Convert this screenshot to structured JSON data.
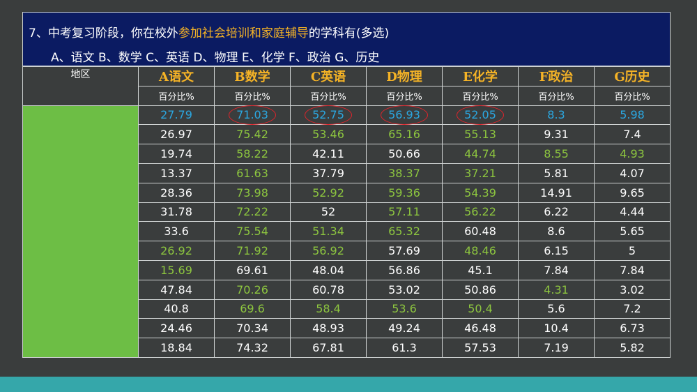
{
  "question": {
    "line1_pre": "7、中考复习阶段，你在校外",
    "line1_highlight": "参加社会培训和家庭辅导",
    "line1_post": "的学科有(多选)",
    "line2": "A、语文 B、数学 C、英语 D、物理 E、化学 F、政治 G、历史"
  },
  "table": {
    "region_header": "地区",
    "unit_label": "百分比%",
    "subjects": [
      "A语文",
      "B数学",
      "C英语",
      "D物理",
      "E化学",
      "F政治",
      "G历史"
    ],
    "rows": [
      [
        "27.79",
        "71.03",
        "52.75",
        "56.93",
        "52.05",
        "8.3",
        "5.98"
      ],
      [
        "26.97",
        "75.42",
        "53.46",
        "65.16",
        "55.13",
        "9.31",
        "7.4"
      ],
      [
        "19.74",
        "58.22",
        "42.11",
        "50.66",
        "44.74",
        "8.55",
        "4.93"
      ],
      [
        "13.37",
        "61.63",
        "37.79",
        "38.37",
        "37.21",
        "5.81",
        "4.07"
      ],
      [
        "28.36",
        "73.98",
        "52.92",
        "59.36",
        "54.39",
        "14.91",
        "9.65"
      ],
      [
        "31.78",
        "72.22",
        "52",
        "57.11",
        "56.22",
        "6.22",
        "4.44"
      ],
      [
        "33.6",
        "75.54",
        "51.34",
        "65.32",
        "60.48",
        "8.6",
        "5.65"
      ],
      [
        "26.92",
        "71.92",
        "56.92",
        "57.69",
        "48.46",
        "6.15",
        "5"
      ],
      [
        "15.69",
        "69.61",
        "48.04",
        "56.86",
        "45.1",
        "7.84",
        "7.84"
      ],
      [
        "47.84",
        "70.26",
        "60.78",
        "53.02",
        "50.86",
        "4.31",
        "3.02"
      ],
      [
        "40.8",
        "69.6",
        "58.4",
        "53.6",
        "50.4",
        "5.6",
        "7.2"
      ],
      [
        "24.46",
        "70.34",
        "48.93",
        "49.24",
        "46.48",
        "10.4",
        "6.73"
      ],
      [
        "18.84",
        "74.32",
        "67.81",
        "61.3",
        "57.53",
        "7.19",
        "5.82"
      ]
    ],
    "highlighted_cells": [
      [
        1,
        1
      ],
      [
        1,
        2
      ],
      [
        1,
        3
      ],
      [
        1,
        4
      ],
      [
        2,
        1
      ],
      [
        2,
        4
      ],
      [
        2,
        5
      ],
      [
        2,
        6
      ],
      [
        3,
        1
      ],
      [
        3,
        3
      ],
      [
        3,
        4
      ],
      [
        4,
        1
      ],
      [
        4,
        2
      ],
      [
        4,
        3
      ],
      [
        4,
        4
      ],
      [
        5,
        1
      ],
      [
        5,
        3
      ],
      [
        5,
        4
      ],
      [
        6,
        1
      ],
      [
        6,
        2
      ],
      [
        6,
        3
      ],
      [
        7,
        0
      ],
      [
        7,
        1
      ],
      [
        7,
        2
      ],
      [
        7,
        4
      ],
      [
        8,
        0
      ],
      [
        9,
        1
      ],
      [
        9,
        5
      ],
      [
        10,
        1
      ],
      [
        10,
        2
      ],
      [
        10,
        3
      ],
      [
        10,
        4
      ]
    ],
    "circled_cells": [
      1,
      2,
      3,
      4
    ],
    "colors": {
      "highlight_green": "#8dc63f",
      "first_row_blue": "#2ba7e0",
      "subject_orange": "#f5b326",
      "circle_red": "#e3242b",
      "region_fill": "#6dbe45",
      "header_navy": "#0b1b62"
    }
  }
}
